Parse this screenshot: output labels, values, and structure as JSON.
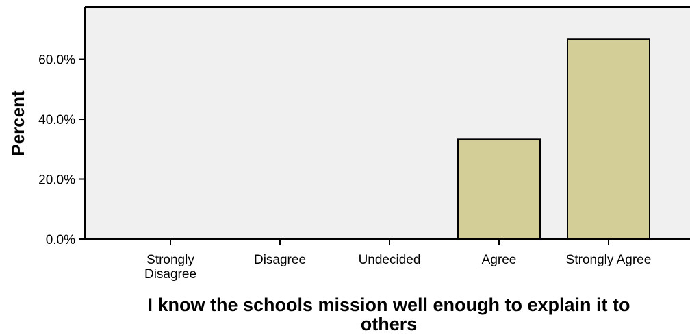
{
  "chart_data": {
    "type": "bar",
    "title": "",
    "xlabel": "I know the schools mission well enough to explain it to others",
    "ylabel": "Percent",
    "categories": [
      "Strongly Disagree",
      "Disagree",
      "Undecided",
      "Agree",
      "Strongly Agree"
    ],
    "category_lines": [
      [
        "Strongly",
        "Disagree"
      ],
      [
        "Disagree"
      ],
      [
        "Undecided"
      ],
      [
        "Agree"
      ],
      [
        "Strongly Agree"
      ]
    ],
    "values": [
      0,
      0,
      0,
      33.3,
      66.7
    ],
    "ylim": [
      0,
      77.5
    ],
    "yticks": [
      0,
      20,
      40,
      60
    ],
    "ytick_labels": [
      "0.0%",
      "20.0%",
      "40.0%",
      "60.0%"
    ],
    "xlabel_lines": [
      "I know the schools mission well enough to explain it to",
      "others"
    ],
    "grid": false,
    "colors": {
      "bar": "#d3ce97",
      "plot_background": "#f0f0f0",
      "outline": "#000000"
    }
  }
}
